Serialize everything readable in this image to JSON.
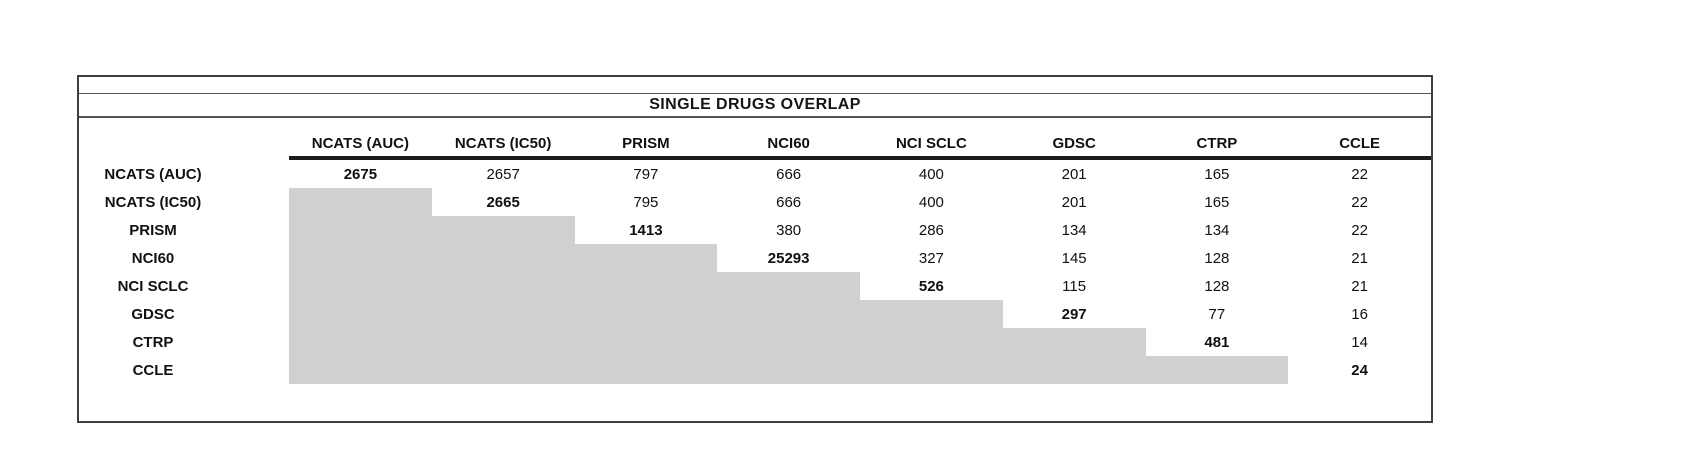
{
  "table": {
    "title": "SINGLE DRUGS OVERLAP",
    "columns": [
      "NCATS (AUC)",
      "NCATS (IC50)",
      "PRISM",
      "NCI60",
      "NCI SCLC",
      "GDSC",
      "CTRP",
      "CCLE"
    ],
    "rows": [
      {
        "label": "NCATS (AUC)",
        "cells": [
          "2675",
          "2657",
          "797",
          "666",
          "400",
          "201",
          "165",
          "22"
        ]
      },
      {
        "label": "NCATS (IC50)",
        "cells": [
          "",
          "2665",
          "795",
          "666",
          "400",
          "201",
          "165",
          "22"
        ]
      },
      {
        "label": "PRISM",
        "cells": [
          "",
          "",
          "1413",
          "380",
          "286",
          "134",
          "134",
          "22"
        ]
      },
      {
        "label": "NCI60",
        "cells": [
          "",
          "",
          "",
          "25293",
          "327",
          "145",
          "128",
          "21"
        ]
      },
      {
        "label": "NCI SCLC",
        "cells": [
          "",
          "",
          "",
          "",
          "526",
          "115",
          "128",
          "21"
        ]
      },
      {
        "label": "GDSC",
        "cells": [
          "",
          "",
          "",
          "",
          "",
          "297",
          "77",
          "16"
        ]
      },
      {
        "label": "CTRP",
        "cells": [
          "",
          "",
          "",
          "",
          "",
          "",
          "481",
          "14"
        ]
      },
      {
        "label": "CCLE",
        "cells": [
          "",
          "",
          "",
          "",
          "",
          "",
          "",
          "24"
        ]
      }
    ],
    "colors": {
      "shaded_fill": "#d1d0d0",
      "border": "#3e3e3e",
      "text": "#111111"
    }
  }
}
